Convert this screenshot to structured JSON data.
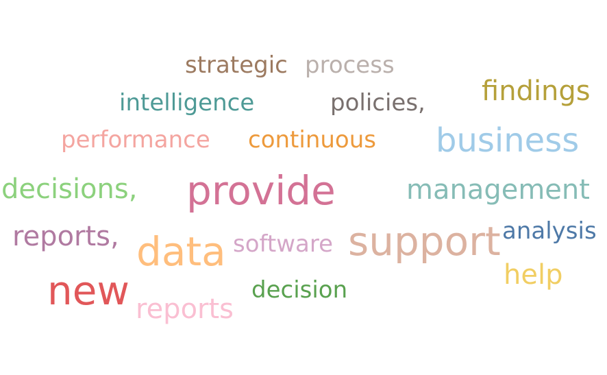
{
  "chart_data": {
    "type": "wordcloud",
    "title": "",
    "words": [
      {
        "text": "strategic",
        "weight": 3,
        "color": "#9c7a60"
      },
      {
        "text": "process",
        "weight": 3,
        "color": "#bab0ac"
      },
      {
        "text": "intelligence",
        "weight": 3,
        "color": "#4e9a96"
      },
      {
        "text": "policies,",
        "weight": 3,
        "color": "#79706e"
      },
      {
        "text": "findings",
        "weight": 4,
        "color": "#b5a03a"
      },
      {
        "text": "performance",
        "weight": 3,
        "color": "#f4a5a0"
      },
      {
        "text": "continuous",
        "weight": 3,
        "color": "#ed9a3c"
      },
      {
        "text": "business",
        "weight": 5,
        "color": "#a0cbe8"
      },
      {
        "text": "decisions,",
        "weight": 4,
        "color": "#8cd17d"
      },
      {
        "text": "provide",
        "weight": 6,
        "color": "#d37295"
      },
      {
        "text": "management",
        "weight": 4,
        "color": "#86bcb6"
      },
      {
        "text": "reports,",
        "weight": 4,
        "color": "#b07aa1"
      },
      {
        "text": "data",
        "weight": 6,
        "color": "#ffbe7d"
      },
      {
        "text": "software",
        "weight": 3,
        "color": "#d4a6c8"
      },
      {
        "text": "support",
        "weight": 6,
        "color": "#dcb2a0"
      },
      {
        "text": "analysis",
        "weight": 3,
        "color": "#4e79a7"
      },
      {
        "text": "help",
        "weight": 4,
        "color": "#f1ce63"
      },
      {
        "text": "new",
        "weight": 6,
        "color": "#e15759"
      },
      {
        "text": "decision",
        "weight": 3,
        "color": "#59a14f"
      },
      {
        "text": "reports",
        "weight": 4,
        "color": "#fabfd2"
      }
    ]
  }
}
